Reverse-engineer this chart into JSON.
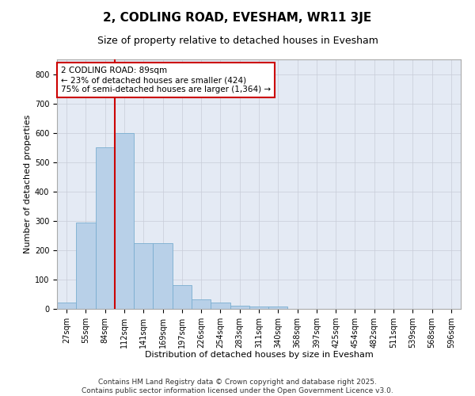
{
  "title": "2, CODLING ROAD, EVESHAM, WR11 3JE",
  "subtitle": "Size of property relative to detached houses in Evesham",
  "xlabel": "Distribution of detached houses by size in Evesham",
  "ylabel": "Number of detached properties",
  "categories": [
    "27sqm",
    "55sqm",
    "84sqm",
    "112sqm",
    "141sqm",
    "169sqm",
    "197sqm",
    "226sqm",
    "254sqm",
    "283sqm",
    "311sqm",
    "340sqm",
    "368sqm",
    "397sqm",
    "425sqm",
    "454sqm",
    "482sqm",
    "511sqm",
    "539sqm",
    "568sqm",
    "596sqm"
  ],
  "values": [
    22,
    293,
    550,
    600,
    225,
    225,
    80,
    33,
    22,
    12,
    9,
    7,
    0,
    0,
    0,
    0,
    0,
    0,
    0,
    0,
    0
  ],
  "bar_color": "#b8d0e8",
  "bar_edge_color": "#7aaed0",
  "vline_color": "#cc0000",
  "vline_x": 2.5,
  "annotation_text": "2 CODLING ROAD: 89sqm\n← 23% of detached houses are smaller (424)\n75% of semi-detached houses are larger (1,364) →",
  "annotation_box_color": "#cc0000",
  "ylim": [
    0,
    850
  ],
  "yticks": [
    0,
    100,
    200,
    300,
    400,
    500,
    600,
    700,
    800
  ],
  "grid_color": "#c8ccd8",
  "bg_color": "#e4eaf4",
  "footer_line1": "Contains HM Land Registry data © Crown copyright and database right 2025.",
  "footer_line2": "Contains public sector information licensed under the Open Government Licence v3.0.",
  "title_fontsize": 11,
  "subtitle_fontsize": 9,
  "axis_label_fontsize": 8,
  "tick_fontsize": 7,
  "annotation_fontsize": 7.5,
  "footer_fontsize": 6.5
}
